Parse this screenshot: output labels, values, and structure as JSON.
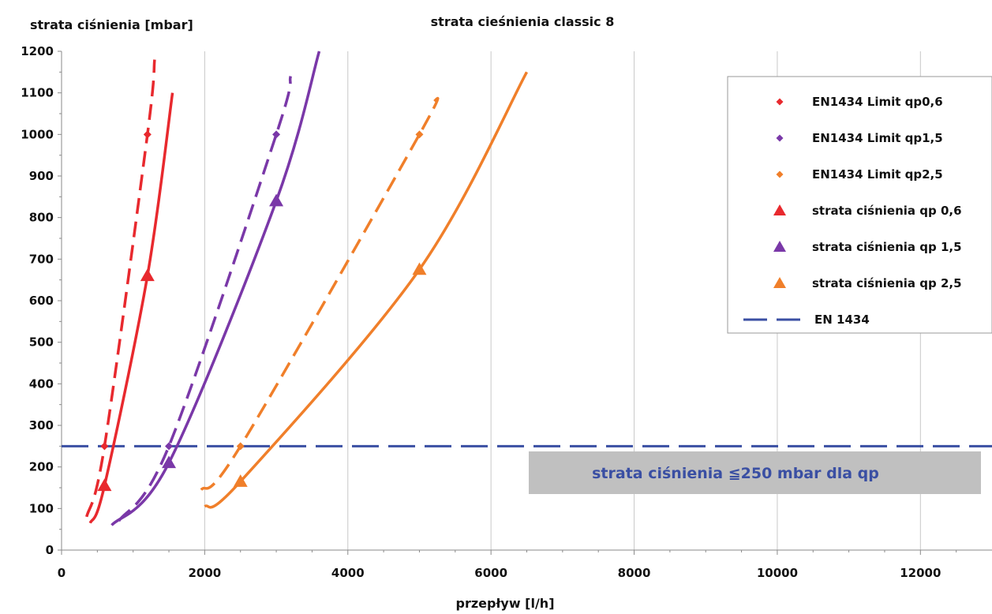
{
  "chart_data": {
    "type": "line",
    "title": "strata cieśnienia classic 8",
    "ylabel": "strata ciśnienia [mbar]",
    "xlabel": "przepływ [l/h]",
    "xlim": [
      0,
      13000
    ],
    "ylim": [
      0,
      1200
    ],
    "xticks": [
      0,
      2000,
      4000,
      6000,
      8000,
      10000,
      12000
    ],
    "yticks": [
      0,
      100,
      200,
      300,
      400,
      500,
      600,
      700,
      800,
      900,
      1000,
      1100,
      1200
    ],
    "grid": "vertical",
    "legend_position": "top-right",
    "series": [
      {
        "name": "EN1434 Limit qp0,6",
        "color": "#e8292e",
        "line": "dashed",
        "marker": "diamond",
        "x": [
          350,
          600,
          1200,
          1300
        ],
        "y": [
          80,
          250,
          1000,
          1180
        ],
        "marker_x": [
          600,
          1200
        ],
        "marker_y": [
          250,
          1000
        ]
      },
      {
        "name": "EN1434 Limit qp1,5",
        "color": "#7a38a8",
        "line": "dashed",
        "marker": "diamond",
        "x": [
          800,
          1500,
          3000,
          3200
        ],
        "y": [
          70,
          250,
          1000,
          1140
        ],
        "marker_x": [
          1500,
          3000
        ],
        "marker_y": [
          250,
          1000
        ]
      },
      {
        "name": "EN1434 Limit qp2,5",
        "color": "#f07f2a",
        "line": "dashed",
        "marker": "diamond",
        "x": [
          1950,
          2500,
          5000,
          5200
        ],
        "y": [
          145,
          250,
          1000,
          1080
        ],
        "marker_x": [
          2500,
          5000
        ],
        "marker_y": [
          250,
          1000
        ]
      },
      {
        "name": "strata ciśnienia qp 0,6",
        "color": "#e8292e",
        "line": "solid",
        "marker": "triangle",
        "x": [
          400,
          600,
          1200,
          1550
        ],
        "y": [
          65,
          155,
          660,
          1100
        ],
        "marker_x": [
          600,
          1200
        ],
        "marker_y": [
          155,
          660
        ]
      },
      {
        "name": "strata ciśnienia qp 1,5",
        "color": "#7a38a8",
        "line": "solid",
        "marker": "triangle",
        "x": [
          700,
          1500,
          3000,
          3600
        ],
        "y": [
          60,
          210,
          840,
          1200
        ],
        "marker_x": [
          1500,
          3000
        ],
        "marker_y": [
          210,
          840
        ]
      },
      {
        "name": "strata ciśnienia qp 2,5",
        "color": "#f07f2a",
        "line": "solid",
        "marker": "triangle",
        "x": [
          2000,
          2500,
          5000,
          6500
        ],
        "y": [
          105,
          165,
          675,
          1150
        ],
        "marker_x": [
          2500,
          5000
        ],
        "marker_y": [
          165,
          675
        ]
      },
      {
        "name": "EN 1434",
        "color": "#3a4fa3",
        "line": "dashed",
        "marker": "none",
        "x": [
          0,
          13000
        ],
        "y": [
          250,
          250
        ]
      }
    ],
    "annotation": {
      "text": "strata ciśnienia ≦250 mbar dla qp",
      "box_color": "#c0c0c0",
      "text_color": "#3a4fa3"
    }
  }
}
